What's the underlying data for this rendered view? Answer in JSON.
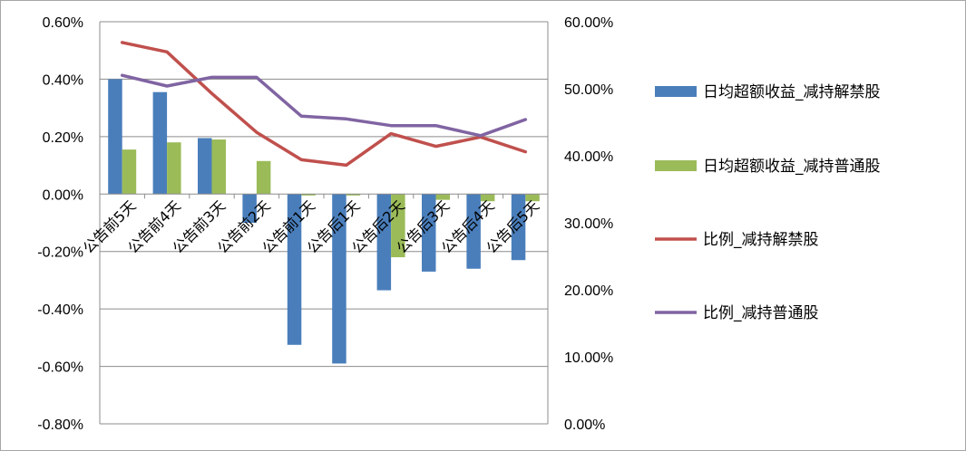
{
  "chart_data": {
    "type": "bar",
    "categories": [
      "公告前5天",
      "公告前4天",
      "公告前3天",
      "公告前2天",
      "公告前1天",
      "公告后1天",
      "公告后2天",
      "公告后3天",
      "公告后4天",
      "公告后5天"
    ],
    "y_left": {
      "ylim": [
        -0.8,
        0.6
      ],
      "ticks": [
        0.6,
        0.4,
        0.2,
        0.0,
        -0.2,
        -0.4,
        -0.6,
        -0.8
      ],
      "tick_labels": [
        "0.60%",
        "0.40%",
        "0.20%",
        "0.00%",
        "-0.20%",
        "-0.40%",
        "-0.60%",
        "-0.80%"
      ]
    },
    "y_right": {
      "ylim": [
        0,
        60
      ],
      "ticks": [
        60,
        50,
        40,
        30,
        20,
        10,
        0
      ],
      "tick_labels": [
        "60.00%",
        "50.00%",
        "40.00%",
        "30.00%",
        "20.00%",
        "10.00%",
        "0.00%"
      ]
    },
    "grid": true,
    "legend_position": "right",
    "series": [
      {
        "name": "日均超额收益_减持解禁股",
        "type": "bar",
        "axis": "left",
        "color": "#4a7ebb",
        "values": [
          0.4,
          0.355,
          0.195,
          -0.1,
          -0.525,
          -0.59,
          -0.335,
          -0.27,
          -0.26,
          -0.23
        ]
      },
      {
        "name": "日均超额收益_减持普通股",
        "type": "bar",
        "axis": "left",
        "color": "#9bbb59",
        "values": [
          0.155,
          0.18,
          0.19,
          0.115,
          -0.005,
          -0.005,
          -0.22,
          -0.02,
          -0.025,
          -0.025
        ]
      },
      {
        "name": "比例_减持解禁股",
        "type": "line",
        "axis": "right",
        "color": "#c0504d",
        "values": [
          56.9,
          55.5,
          49.3,
          43.5,
          39.4,
          38.6,
          43.3,
          41.4,
          42.8,
          40.6
        ]
      },
      {
        "name": "比例_减持普通股",
        "type": "line",
        "axis": "right",
        "color": "#8064a2",
        "values": [
          52.0,
          50.4,
          51.7,
          51.7,
          45.9,
          45.5,
          44.5,
          44.5,
          43.0,
          45.4
        ]
      }
    ]
  }
}
